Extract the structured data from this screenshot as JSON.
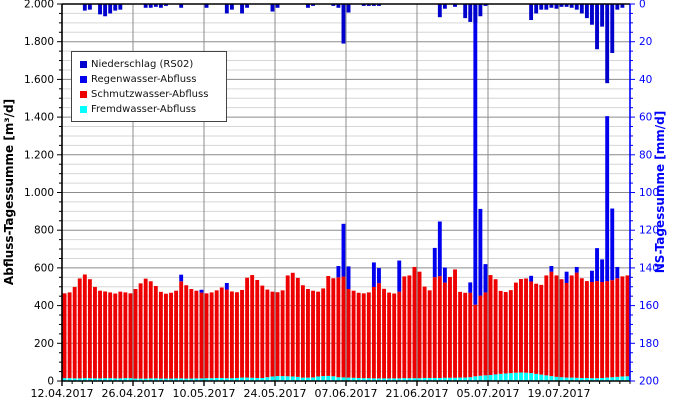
{
  "chart_data": {
    "type": "bar",
    "title": "",
    "description": "Daily stacked runoff totals (Fremdwasser, Schmutzwasser, Regenwasser) on left axis with precipitation (Niederschlag) hanging from top on inverted right axis",
    "start_date": "12.04.2017",
    "num_days": 112,
    "xlabel": "",
    "ylabel_left": "Abfluss-Tagessumme [m³/d]",
    "ylabel_right": "NS-Tagessumme [mm/d]",
    "y_left_range": [
      0,
      2000
    ],
    "y_left_ticks": [
      "0",
      "200",
      "400",
      "600",
      "800",
      "1.000",
      "1.200",
      "1.400",
      "1.600",
      "1.800",
      "2.000"
    ],
    "y_left_minor_step": 50,
    "y_right_range": [
      0,
      200
    ],
    "y_right_inverted": true,
    "y_right_ticks": [
      "0",
      "20",
      "40",
      "60",
      "80",
      "100",
      "120",
      "140",
      "160",
      "180",
      "200"
    ],
    "y_right_minor_step": 5,
    "x_tick_labels": [
      "12.04.2017",
      "26.04.2017",
      "10.05.2017",
      "24.05.2017",
      "07.06.2017",
      "21.06.2017",
      "05.07.2017",
      "19.07.2017"
    ],
    "x_tick_days": [
      0,
      14,
      28,
      42,
      56,
      70,
      84,
      98
    ],
    "grid": {
      "horizontal_minor": true,
      "horizontal_major": true,
      "vertical_major": true
    },
    "legend_position": "top-left-inside",
    "legend": [
      {
        "label": "Niederschlag (RS02)",
        "color": "#0000cc"
      },
      {
        "label": "Regenwasser-Abfluss",
        "color": "#0000ee"
      },
      {
        "label": "Schmutzwasser-Abfluss",
        "color": "#ee0000"
      },
      {
        "label": "Fremdwasser-Abfluss",
        "color": "#00ffff"
      }
    ],
    "series": [
      {
        "name": "Fremdwasser-Abfluss",
        "stack": "runoff",
        "axis": "left",
        "color": "#00ffff",
        "values": [
          15,
          15,
          14,
          14,
          15,
          15,
          14,
          14,
          15,
          15,
          14,
          14,
          15,
          15,
          13,
          13,
          13,
          14,
          14,
          13,
          13,
          13,
          14,
          14,
          13,
          13,
          14,
          14,
          15,
          15,
          16,
          16,
          15,
          15,
          16,
          18,
          18,
          17,
          16,
          16,
          20,
          24,
          26,
          26,
          25,
          24,
          22,
          18,
          18,
          19,
          24,
          26,
          27,
          25,
          20,
          19,
          18,
          17,
          16,
          15,
          15,
          14,
          14,
          14,
          14,
          14,
          14,
          15,
          15,
          15,
          15,
          16,
          16,
          16,
          16,
          17,
          17,
          17,
          18,
          18,
          20,
          25,
          28,
          30,
          32,
          35,
          38,
          40,
          42,
          44,
          45,
          44,
          42,
          38,
          34,
          30,
          26,
          22,
          20,
          18,
          18,
          17,
          16,
          16,
          15,
          15,
          16,
          18,
          20,
          22,
          24,
          25
        ]
      },
      {
        "name": "Schmutzwasser-Abfluss",
        "stack": "runoff",
        "axis": "left",
        "color": "#ee0000",
        "values": [
          450,
          455,
          485,
          530,
          550,
          525,
          485,
          465,
          460,
          455,
          450,
          460,
          455,
          450,
          475,
          505,
          530,
          515,
          490,
          460,
          450,
          455,
          465,
          515,
          495,
          475,
          465,
          455,
          450,
          455,
          465,
          480,
          470,
          460,
          455,
          465,
          530,
          545,
          520,
          490,
          465,
          450,
          445,
          455,
          535,
          550,
          525,
          490,
          470,
          460,
          450,
          465,
          530,
          520,
          530,
          535,
          470,
          462,
          452,
          450,
          455,
          485,
          505,
          475,
          455,
          450,
          460,
          540,
          545,
          590,
          565,
          485,
          465,
          535,
          540,
          505,
          535,
          575,
          455,
          450,
          448,
          380,
          425,
          440,
          530,
          505,
          440,
          432,
          440,
          478,
          496,
          500,
          486,
          478,
          476,
          530,
          554,
          538,
          520,
          502,
          542,
          558,
          529,
          514,
          510,
          515,
          509,
          512,
          515,
          523,
          531,
          535
        ]
      },
      {
        "name": "Regenwasser-Abfluss",
        "stack": "runoff",
        "axis": "left",
        "color": "#0000ee",
        "values": [
          0,
          0,
          0,
          0,
          0,
          0,
          0,
          0,
          0,
          0,
          0,
          0,
          0,
          0,
          0,
          0,
          0,
          0,
          0,
          0,
          0,
          0,
          0,
          35,
          0,
          0,
          0,
          15,
          0,
          0,
          0,
          0,
          35,
          0,
          0,
          0,
          0,
          0,
          0,
          0,
          0,
          0,
          0,
          0,
          0,
          0,
          0,
          0,
          0,
          0,
          0,
          0,
          0,
          0,
          60,
          280,
          120,
          0,
          0,
          0,
          0,
          130,
          80,
          0,
          0,
          0,
          165,
          0,
          0,
          0,
          0,
          0,
          0,
          155,
          290,
          80,
          0,
          0,
          0,
          0,
          55,
          1600,
          460,
          150,
          0,
          0,
          0,
          0,
          0,
          0,
          0,
          0,
          30,
          0,
          0,
          0,
          30,
          0,
          0,
          60,
          0,
          30,
          0,
          0,
          60,
          175,
          120,
          875,
          380,
          60,
          0,
          0
        ]
      },
      {
        "name": "Niederschlag (RS02)",
        "stack": "precipitation",
        "axis": "right",
        "color": "#0000cc",
        "values": [
          0,
          0,
          0,
          0,
          3.5,
          3,
          0,
          5.5,
          6.5,
          5,
          3.5,
          3,
          0,
          0,
          0,
          0,
          2,
          2,
          1.5,
          2,
          1,
          0,
          0,
          2,
          0,
          0,
          0,
          0,
          2,
          0,
          0,
          0,
          5,
          3,
          0,
          5,
          2,
          0,
          0,
          0,
          0,
          4,
          2,
          0,
          0,
          0,
          0,
          0,
          2,
          1,
          0,
          0,
          0,
          1,
          2,
          21,
          4.5,
          0,
          0,
          1,
          1,
          1,
          1,
          0,
          0,
          0,
          0,
          0,
          0,
          0,
          0,
          0,
          0,
          0,
          7,
          2.5,
          0,
          1.5,
          0,
          7.5,
          9.5,
          10,
          6.5,
          1,
          0,
          0,
          0,
          0,
          0,
          0,
          0,
          0,
          8.5,
          5,
          3,
          3,
          2,
          2.5,
          1.5,
          1.5,
          2,
          3,
          5,
          7.5,
          11,
          24,
          12,
          42,
          26,
          3,
          2,
          0
        ]
      }
    ],
    "colors": {
      "left_axis": "#000000",
      "right_axis": "#0000ff",
      "grid_minor": "#d6d6d6",
      "grid_major": "#8c8c8c",
      "background": "#ffffff"
    }
  }
}
